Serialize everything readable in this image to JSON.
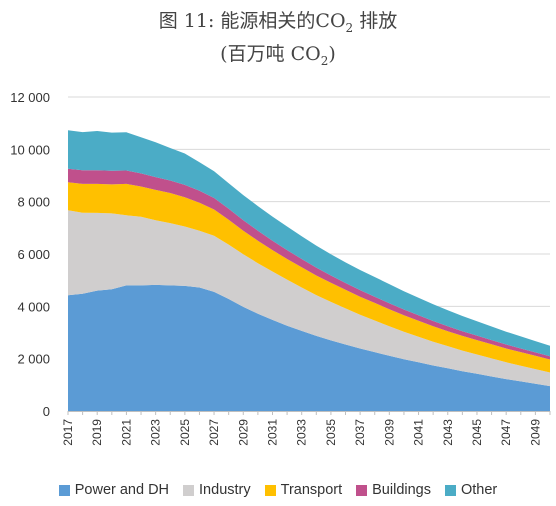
{
  "title": {
    "line1_prefix": "图 11: 能源相关的CO",
    "line1_sub": "2",
    "line1_suffix": " 排放",
    "line2_prefix": "(百万吨 CO",
    "line2_sub": "2",
    "line2_suffix": ")"
  },
  "chart_data": {
    "type": "area",
    "stacked": true,
    "x": [
      2017,
      2018,
      2019,
      2020,
      2021,
      2022,
      2023,
      2024,
      2025,
      2026,
      2027,
      2028,
      2029,
      2030,
      2031,
      2032,
      2033,
      2034,
      2035,
      2036,
      2037,
      2038,
      2039,
      2040,
      2041,
      2042,
      2043,
      2044,
      2045,
      2046,
      2047,
      2048,
      2049,
      2050
    ],
    "x_tick_labels": [
      "2017",
      "2019",
      "2021",
      "2023",
      "2025",
      "2027",
      "2029",
      "2031",
      "2033",
      "2035",
      "2037",
      "2039",
      "2041",
      "2043",
      "2045",
      "2047",
      "2049"
    ],
    "ylim": [
      0,
      12000
    ],
    "y_ticks": [
      0,
      2000,
      4000,
      6000,
      8000,
      10000,
      12000
    ],
    "y_tick_labels": [
      "0",
      "2 000",
      "4 000",
      "6 000",
      "8 000",
      "10 000",
      "12 000"
    ],
    "grid": true,
    "legend_position": "bottom",
    "series": [
      {
        "name": "Power and DH",
        "color": "#5b9bd5",
        "values": [
          4420,
          4480,
          4600,
          4650,
          4800,
          4800,
          4820,
          4800,
          4780,
          4720,
          4550,
          4280,
          3980,
          3720,
          3480,
          3260,
          3060,
          2870,
          2700,
          2540,
          2390,
          2250,
          2110,
          1980,
          1860,
          1740,
          1630,
          1520,
          1420,
          1320,
          1220,
          1130,
          1040,
          950
        ]
      },
      {
        "name": "Industry",
        "color": "#d0cece",
        "values": [
          3250,
          3100,
          2970,
          2900,
          2680,
          2620,
          2470,
          2380,
          2270,
          2170,
          2150,
          2080,
          2010,
          1930,
          1850,
          1760,
          1660,
          1560,
          1470,
          1380,
          1290,
          1210,
          1130,
          1050,
          980,
          910,
          850,
          790,
          740,
          690,
          640,
          600,
          560,
          520
        ]
      },
      {
        "name": "Transport",
        "color": "#ffc000",
        "values": [
          1070,
          1100,
          1110,
          1110,
          1200,
          1160,
          1160,
          1150,
          1120,
          1070,
          1000,
          950,
          900,
          860,
          820,
          790,
          770,
          750,
          730,
          710,
          690,
          670,
          650,
          630,
          610,
          590,
          570,
          560,
          550,
          540,
          530,
          520,
          510,
          500
        ]
      },
      {
        "name": "Buildings",
        "color": "#c0508c",
        "values": [
          520,
          520,
          520,
          520,
          510,
          500,
          490,
          480,
          470,
          460,
          440,
          420,
          400,
          380,
          360,
          340,
          320,
          300,
          280,
          260,
          250,
          240,
          230,
          220,
          210,
          200,
          190,
          180,
          170,
          160,
          150,
          140,
          130,
          120
        ]
      },
      {
        "name": "Other",
        "color": "#4bacc6",
        "values": [
          1470,
          1460,
          1500,
          1460,
          1460,
          1380,
          1330,
          1240,
          1200,
          1090,
          1020,
          970,
          960,
          940,
          920,
          900,
          870,
          840,
          810,
          790,
          770,
          750,
          730,
          700,
          670,
          640,
          610,
          580,
          550,
          520,
          490,
          460,
          430,
          400
        ]
      }
    ]
  }
}
